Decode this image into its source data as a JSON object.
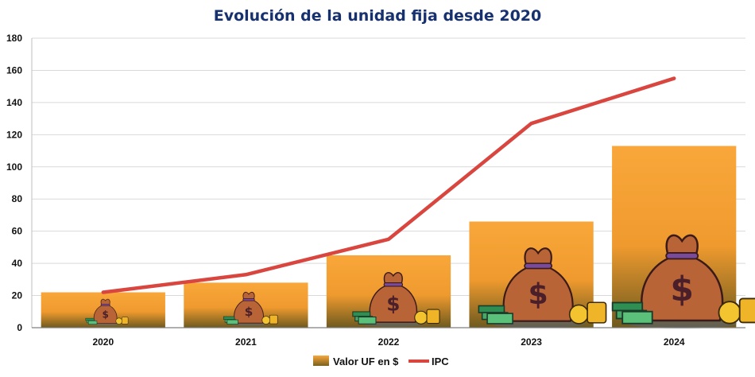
{
  "chart_data": {
    "type": "bar+line",
    "title": "Evolución de la unidad fija desde 2020",
    "categories": [
      "2020",
      "2021",
      "2022",
      "2023",
      "2024"
    ],
    "series": [
      {
        "name": "Valor UF en $",
        "type": "bar",
        "values": [
          22,
          28,
          45,
          66,
          113
        ],
        "color": "#f5a535"
      },
      {
        "name": "IPC",
        "type": "line",
        "values": [
          22,
          33,
          55,
          127,
          155
        ],
        "color": "#d9463f"
      }
    ],
    "ylim": [
      0,
      180
    ],
    "yticks": [
      "0",
      "20",
      "40",
      "60",
      "80",
      "100",
      "120",
      "140",
      "160",
      "180"
    ],
    "grid": true,
    "legend": "bottom",
    "bar_decoration": "money-bag-icon"
  }
}
